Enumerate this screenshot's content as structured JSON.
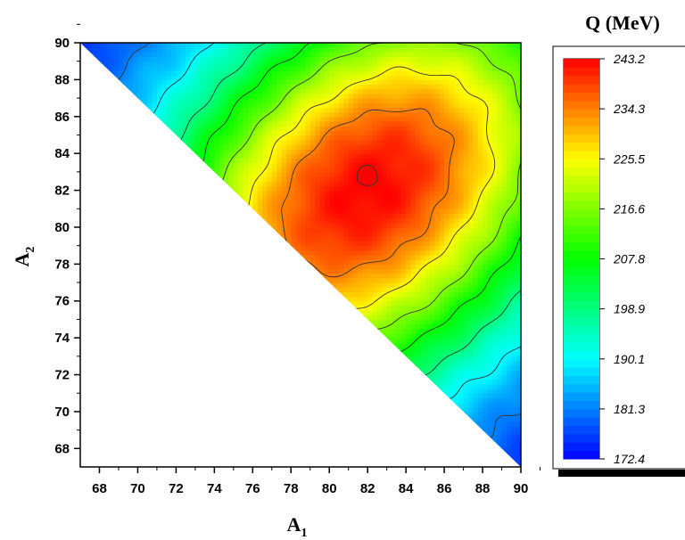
{
  "chart_data": {
    "type": "heatmap",
    "subtype": "filled contour map on triangular domain (A2 >= 157 - A1)",
    "xlabel": "A",
    "xlabel_sub": "1",
    "ylabel": "A",
    "ylabel_sub": "2",
    "colorbar_title": "Q (MeV)",
    "x_ticks": [
      68,
      70,
      72,
      74,
      76,
      78,
      80,
      82,
      84,
      86,
      88,
      90
    ],
    "y_ticks": [
      68,
      70,
      72,
      74,
      76,
      78,
      80,
      82,
      84,
      86,
      88,
      90
    ],
    "xlim": [
      67,
      90
    ],
    "ylim": [
      67,
      90
    ],
    "value_range": [
      172.4,
      243.2
    ],
    "colorbar_ticks": [
      "243.2",
      "234.3",
      "225.5",
      "216.6",
      "207.8",
      "198.9",
      "190.1",
      "181.3",
      "172.4"
    ],
    "peak": {
      "A1": 82,
      "A2": 82,
      "Q": 243.2
    },
    "grid": false,
    "colormap": [
      "#0000ff",
      "#00ffff",
      "#00ff00",
      "#ffff00",
      "#ff0000"
    ]
  }
}
